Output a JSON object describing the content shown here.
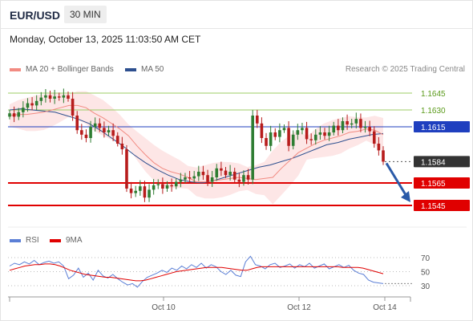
{
  "header": {
    "symbol": "EUR/USD",
    "timeframe": "30 MIN",
    "datetime": "Monday, October 13, 2025 11:03:50 AM CET"
  },
  "legend": {
    "ma20_label": "MA 20 + Bollinger Bands",
    "ma50_label": "MA 50",
    "credit": "Research © 2025 Trading Central",
    "rsi_label": "RSI",
    "rsi_ma_label": "9MA"
  },
  "colors": {
    "up": "#2e7d32",
    "down": "#b71c1c",
    "ma20": "#f28b82",
    "bands": "#fde0e0",
    "ma50": "#2d4f8f",
    "resistance_minor": "#9ccc65",
    "pivot": "#1f3fbf",
    "support": "#e00000",
    "current": "#333333",
    "rsi": "#5b7fd6",
    "rsi_ma": "#e00000",
    "arrow": "#2a5aa8"
  },
  "chart_data": {
    "type": "candlestick",
    "title": "EUR/USD",
    "timeframe": "30 MIN",
    "xlabel": "",
    "ylabel": "",
    "ylim": [
      1.1535,
      1.1655
    ],
    "x_ticks": [
      "Oct 10",
      "Oct 12",
      "Oct 14"
    ],
    "levels": [
      {
        "value": 1.1645,
        "label": "1.1645",
        "kind": "resistance"
      },
      {
        "value": 1.163,
        "label": "1.1630",
        "kind": "resistance"
      },
      {
        "value": 1.1615,
        "label": "1.1615",
        "kind": "pivot"
      },
      {
        "value": 1.1584,
        "label": "1.1584",
        "kind": "last"
      },
      {
        "value": 1.1565,
        "label": "1.1565",
        "kind": "support"
      },
      {
        "value": 1.1545,
        "label": "1.1545",
        "kind": "support"
      }
    ],
    "price_path": [
      1.1627,
      1.1624,
      1.1628,
      1.1632,
      1.1636,
      1.1634,
      1.1638,
      1.1641,
      1.1643,
      1.164,
      1.1642,
      1.1641,
      1.1643,
      1.164,
      1.1625,
      1.1612,
      1.1608,
      1.1605,
      1.1615,
      1.1618,
      1.1614,
      1.161,
      1.1612,
      1.1607,
      1.16,
      1.1595,
      1.156,
      1.1556,
      1.1558,
      1.1562,
      1.1552,
      1.1559,
      1.1563,
      1.1564,
      1.156,
      1.1563,
      1.1562,
      1.1566,
      1.1568,
      1.157,
      1.1569,
      1.1571,
      1.1575,
      1.1572,
      1.1566,
      1.157,
      1.1578,
      1.1576,
      1.1572,
      1.1575,
      1.1568,
      1.1566,
      1.1572,
      1.1568,
      1.1625,
      1.1618,
      1.1605,
      1.1598,
      1.161,
      1.1606,
      1.1612,
      1.1614,
      1.1598,
      1.1608,
      1.1612,
      1.1614,
      1.1604,
      1.1603,
      1.1608,
      1.161,
      1.1607,
      1.161,
      1.1616,
      1.1612,
      1.162,
      1.1617,
      1.1618,
      1.1622,
      1.1614,
      1.1615,
      1.1611,
      1.16,
      1.1594,
      1.1584
    ],
    "ma20": [
      1.1625,
      1.1626,
      1.1626,
      1.1627,
      1.1628,
      1.163,
      1.1632,
      1.1634,
      1.1634,
      1.1632,
      1.1627,
      1.1623,
      1.1618,
      1.1613,
      1.1607,
      1.1598,
      1.159,
      1.1583,
      1.1578,
      1.1575,
      1.1573,
      1.157,
      1.1566,
      1.1566,
      1.1567,
      1.1568,
      1.1569,
      1.157,
      1.1569,
      1.1568,
      1.1569,
      1.157,
      1.1578,
      1.1585,
      1.1592,
      1.1596,
      1.16,
      1.1603,
      1.1605,
      1.1607,
      1.161,
      1.1611,
      1.1613,
      1.1612,
      1.1608
    ],
    "ma50": [
      1.163,
      1.1631,
      1.163,
      1.1629,
      1.1628,
      1.1625,
      1.1622,
      1.1618,
      1.1612,
      1.1605,
      1.1598,
      1.159,
      1.1583,
      1.1577,
      1.1572,
      1.1568,
      1.1566,
      1.1565,
      1.1567,
      1.157,
      1.1573,
      1.1576,
      1.1579,
      1.1581,
      1.1584,
      1.1587,
      1.1591,
      1.1595,
      1.1599,
      1.1601,
      1.1604,
      1.1606,
      1.1608,
      1.1609
    ],
    "forecast": {
      "from": 1.1584,
      "to": 1.1545,
      "direction": "down"
    },
    "rsi": {
      "ylim": [
        20,
        80
      ],
      "levels": [
        70,
        50,
        30
      ],
      "labels": [
        "70",
        "50",
        "30"
      ],
      "rsi": [
        58,
        62,
        60,
        64,
        61,
        66,
        60,
        63,
        65,
        62,
        64,
        58,
        40,
        45,
        55,
        42,
        48,
        38,
        52,
        44,
        41,
        46,
        40,
        35,
        31,
        33,
        28,
        36,
        42,
        45,
        48,
        52,
        49,
        55,
        52,
        58,
        54,
        60,
        56,
        62,
        55,
        60,
        57,
        50,
        46,
        52,
        45,
        43,
        64,
        72,
        60,
        58,
        54,
        60,
        62,
        56,
        58,
        61,
        55,
        60,
        57,
        62,
        55,
        58,
        61,
        54,
        57,
        60,
        56,
        59,
        52,
        48,
        46,
        38,
        35,
        34,
        33
      ],
      "rsi_ma": [
        52,
        54,
        56,
        58,
        59,
        60,
        60,
        61,
        61,
        60,
        58,
        55,
        52,
        50,
        48,
        46,
        45,
        44,
        43,
        42,
        42,
        41,
        40,
        39,
        38,
        37,
        37,
        38,
        40,
        42,
        44,
        46,
        48,
        50,
        51,
        52,
        53,
        54,
        55,
        56,
        56,
        56,
        56,
        55,
        54,
        53,
        52,
        52,
        54,
        56,
        57,
        57,
        57,
        57,
        57,
        57,
        57,
        57,
        57,
        57,
        57,
        57,
        57,
        57,
        57,
        57,
        56,
        56,
        56,
        56,
        55,
        53,
        51,
        49,
        47
      ]
    }
  }
}
